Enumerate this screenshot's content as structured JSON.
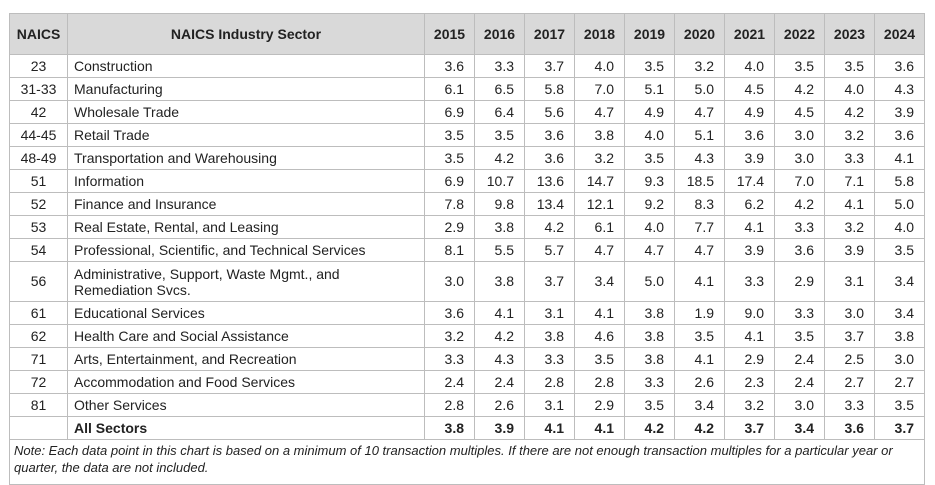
{
  "chart_data": {
    "type": "table",
    "columns": {
      "code": "NAICS",
      "sector": "NAICS Industry Sector",
      "years": [
        "2015",
        "2016",
        "2017",
        "2018",
        "2019",
        "2020",
        "2021",
        "2022",
        "2023",
        "2024"
      ]
    },
    "rows": [
      {
        "code": "23",
        "sector": "Construction",
        "values": [
          "3.6",
          "3.3",
          "3.7",
          "4.0",
          "3.5",
          "3.2",
          "4.0",
          "3.5",
          "3.5",
          "3.6"
        ]
      },
      {
        "code": "31-33",
        "sector": "Manufacturing",
        "values": [
          "6.1",
          "6.5",
          "5.8",
          "7.0",
          "5.1",
          "5.0",
          "4.5",
          "4.2",
          "4.0",
          "4.3"
        ]
      },
      {
        "code": "42",
        "sector": "Wholesale Trade",
        "values": [
          "6.9",
          "6.4",
          "5.6",
          "4.7",
          "4.9",
          "4.7",
          "4.9",
          "4.5",
          "4.2",
          "3.9"
        ]
      },
      {
        "code": "44-45",
        "sector": "Retail Trade",
        "values": [
          "3.5",
          "3.5",
          "3.6",
          "3.8",
          "4.0",
          "5.1",
          "3.6",
          "3.0",
          "3.2",
          "3.6"
        ]
      },
      {
        "code": "48-49",
        "sector": "Transportation and Warehousing",
        "values": [
          "3.5",
          "4.2",
          "3.6",
          "3.2",
          "3.5",
          "4.3",
          "3.9",
          "3.0",
          "3.3",
          "4.1"
        ]
      },
      {
        "code": "51",
        "sector": "Information",
        "values": [
          "6.9",
          "10.7",
          "13.6",
          "14.7",
          "9.3",
          "18.5",
          "17.4",
          "7.0",
          "7.1",
          "5.8"
        ]
      },
      {
        "code": "52",
        "sector": "Finance and Insurance",
        "values": [
          "7.8",
          "9.8",
          "13.4",
          "12.1",
          "9.2",
          "8.3",
          "6.2",
          "4.2",
          "4.1",
          "5.0"
        ]
      },
      {
        "code": "53",
        "sector": "Real Estate, Rental, and Leasing",
        "values": [
          "2.9",
          "3.8",
          "4.2",
          "6.1",
          "4.0",
          "7.7",
          "4.1",
          "3.3",
          "3.2",
          "4.0"
        ]
      },
      {
        "code": "54",
        "sector": "Professional, Scientific, and Technical Services",
        "values": [
          "8.1",
          "5.5",
          "5.7",
          "4.7",
          "4.7",
          "4.7",
          "3.9",
          "3.6",
          "3.9",
          "3.5"
        ]
      },
      {
        "code": "56",
        "sector": "Administrative, Support, Waste Mgmt., and Remediation Svcs.",
        "values": [
          "3.0",
          "3.8",
          "3.7",
          "3.4",
          "5.0",
          "4.1",
          "3.3",
          "2.9",
          "3.1",
          "3.4"
        ],
        "tall": true
      },
      {
        "code": "61",
        "sector": "Educational Services",
        "values": [
          "3.6",
          "4.1",
          "3.1",
          "4.1",
          "3.8",
          "1.9",
          "9.0",
          "3.3",
          "3.0",
          "3.4"
        ]
      },
      {
        "code": "62",
        "sector": "Health Care and Social Assistance",
        "values": [
          "3.2",
          "4.2",
          "3.8",
          "4.6",
          "3.8",
          "3.5",
          "4.1",
          "3.5",
          "3.7",
          "3.8"
        ]
      },
      {
        "code": "71",
        "sector": "Arts, Entertainment, and Recreation",
        "values": [
          "3.3",
          "4.3",
          "3.3",
          "3.5",
          "3.8",
          "4.1",
          "2.9",
          "2.4",
          "2.5",
          "3.0"
        ]
      },
      {
        "code": "72",
        "sector": "Accommodation and Food Services",
        "values": [
          "2.4",
          "2.4",
          "2.8",
          "2.8",
          "3.3",
          "2.6",
          "2.3",
          "2.4",
          "2.7",
          "2.7"
        ]
      },
      {
        "code": "81",
        "sector": "Other Services",
        "values": [
          "2.8",
          "2.6",
          "3.1",
          "2.9",
          "3.5",
          "3.4",
          "3.2",
          "3.0",
          "3.3",
          "3.5"
        ]
      }
    ],
    "total": {
      "code": "",
      "sector": "All Sectors",
      "values": [
        "3.8",
        "3.9",
        "4.1",
        "4.1",
        "4.2",
        "4.2",
        "3.7",
        "3.4",
        "3.6",
        "3.7"
      ]
    },
    "note": "Note: Each data point in this chart is based on a minimum of 10 transaction multiples. If there are not enough transaction multiples for a particular year or quarter, the data are not included.",
    "colors": {
      "header_bg": "#d9d9d9",
      "border": "#bdbdbd"
    }
  }
}
